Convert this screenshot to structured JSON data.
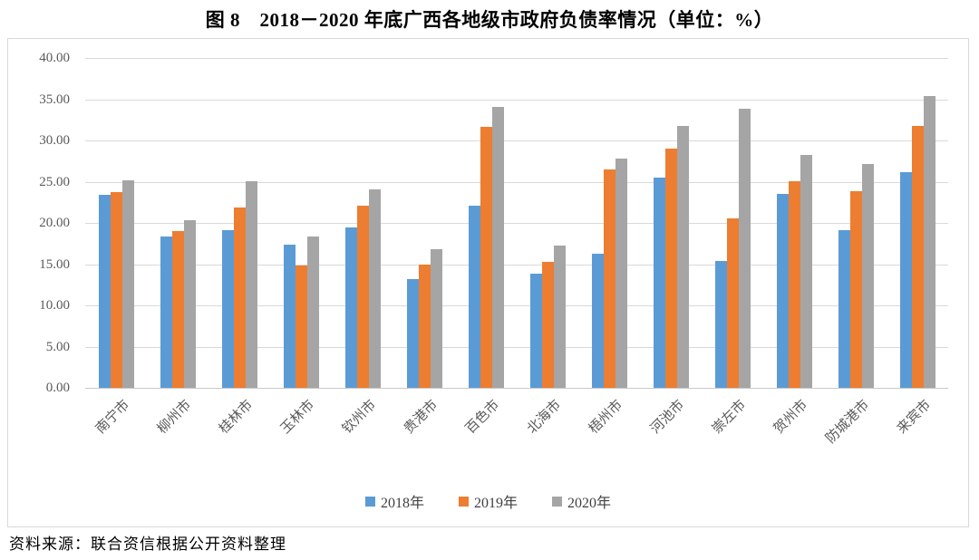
{
  "chart_data": {
    "type": "bar",
    "title": "图 8　2018－2020 年底广西各地级市政府负债率情况（单位：%）",
    "source": "资料来源：联合资信根据公开资料整理",
    "categories": [
      "南宁市",
      "柳州市",
      "桂林市",
      "玉林市",
      "钦州市",
      "贵港市",
      "百色市",
      "北海市",
      "梧州市",
      "河池市",
      "崇左市",
      "贺州市",
      "防城港市",
      "来宾市"
    ],
    "series": [
      {
        "name": "2018年",
        "color": "#5B9BD5",
        "values": [
          23.4,
          18.4,
          19.1,
          17.4,
          19.5,
          13.2,
          22.1,
          13.8,
          16.3,
          25.5,
          15.4,
          23.5,
          19.1,
          26.2
        ]
      },
      {
        "name": "2019年",
        "color": "#ED7D31",
        "values": [
          23.7,
          19.0,
          21.9,
          14.8,
          22.1,
          14.9,
          31.6,
          15.3,
          26.5,
          29.0,
          20.5,
          25.0,
          23.8,
          31.8
        ]
      },
      {
        "name": "2020年",
        "color": "#A5A5A5",
        "values": [
          25.2,
          20.3,
          25.0,
          18.3,
          24.1,
          16.8,
          34.1,
          17.3,
          27.8,
          31.8,
          33.9,
          28.2,
          27.1,
          35.4
        ]
      }
    ],
    "ylim": [
      0,
      40
    ],
    "ytick_step": 5,
    "ytick_labels": [
      "0.00",
      "5.00",
      "10.00",
      "15.00",
      "20.00",
      "25.00",
      "30.00",
      "35.00",
      "40.00"
    ],
    "xlabel": "",
    "ylabel": "",
    "grid": true,
    "legend_position": "bottom"
  }
}
